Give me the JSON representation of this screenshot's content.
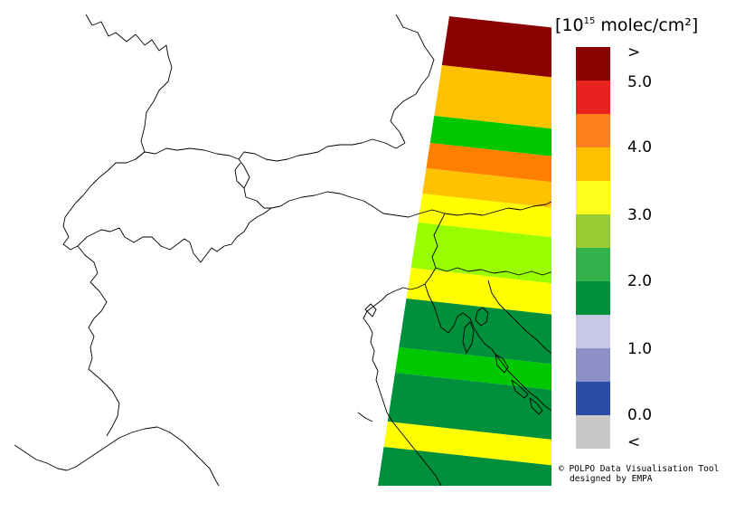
{
  "legend": {
    "unit_open": "[10",
    "unit_exponent": "15",
    "unit_rest": " molec/cm²]",
    "labels": [
      ">",
      "5.0",
      "4.0",
      "3.0",
      "2.0",
      "1.0",
      "0.0",
      "<"
    ],
    "colors": [
      "#8b0000",
      "#e8231f",
      "#ff7f1f",
      "#ffc200",
      "#ffff1f",
      "#99cc33",
      "#33b24c",
      "#008f3a",
      "#c8c8e6",
      "#8c8fc8",
      "#2a4ca6",
      "#c8c8c8"
    ]
  },
  "map": {
    "swath_bands": [
      {
        "value_bin": ">",
        "color": "#8b0000"
      },
      {
        "value_bin": "3.5-4.0",
        "color": "#ffc200"
      },
      {
        "value_bin": "2.0-2.5",
        "color": "#00c800"
      },
      {
        "value_bin": "4.0-4.5",
        "color": "#ff8000"
      },
      {
        "value_bin": "3.5-4.0",
        "color": "#ffc200"
      },
      {
        "value_bin": "3.0-3.5",
        "color": "#ffff00"
      },
      {
        "value_bin": "2.5-3.0",
        "color": "#99ff00"
      },
      {
        "value_bin": "3.0-3.5",
        "color": "#ffff00"
      },
      {
        "value_bin": "1.5-2.0",
        "color": "#008f3a"
      },
      {
        "value_bin": "2.0-2.5",
        "color": "#00c800"
      },
      {
        "value_bin": "1.5-2.0",
        "color": "#008f3a"
      },
      {
        "value_bin": "3.0-3.5",
        "color": "#ffff00"
      },
      {
        "value_bin": "1.5-2.0",
        "color": "#008f3a"
      }
    ]
  },
  "credit": {
    "line1": "© POLPO Data Visualisation Tool",
    "line2": "designed by EMPA"
  }
}
